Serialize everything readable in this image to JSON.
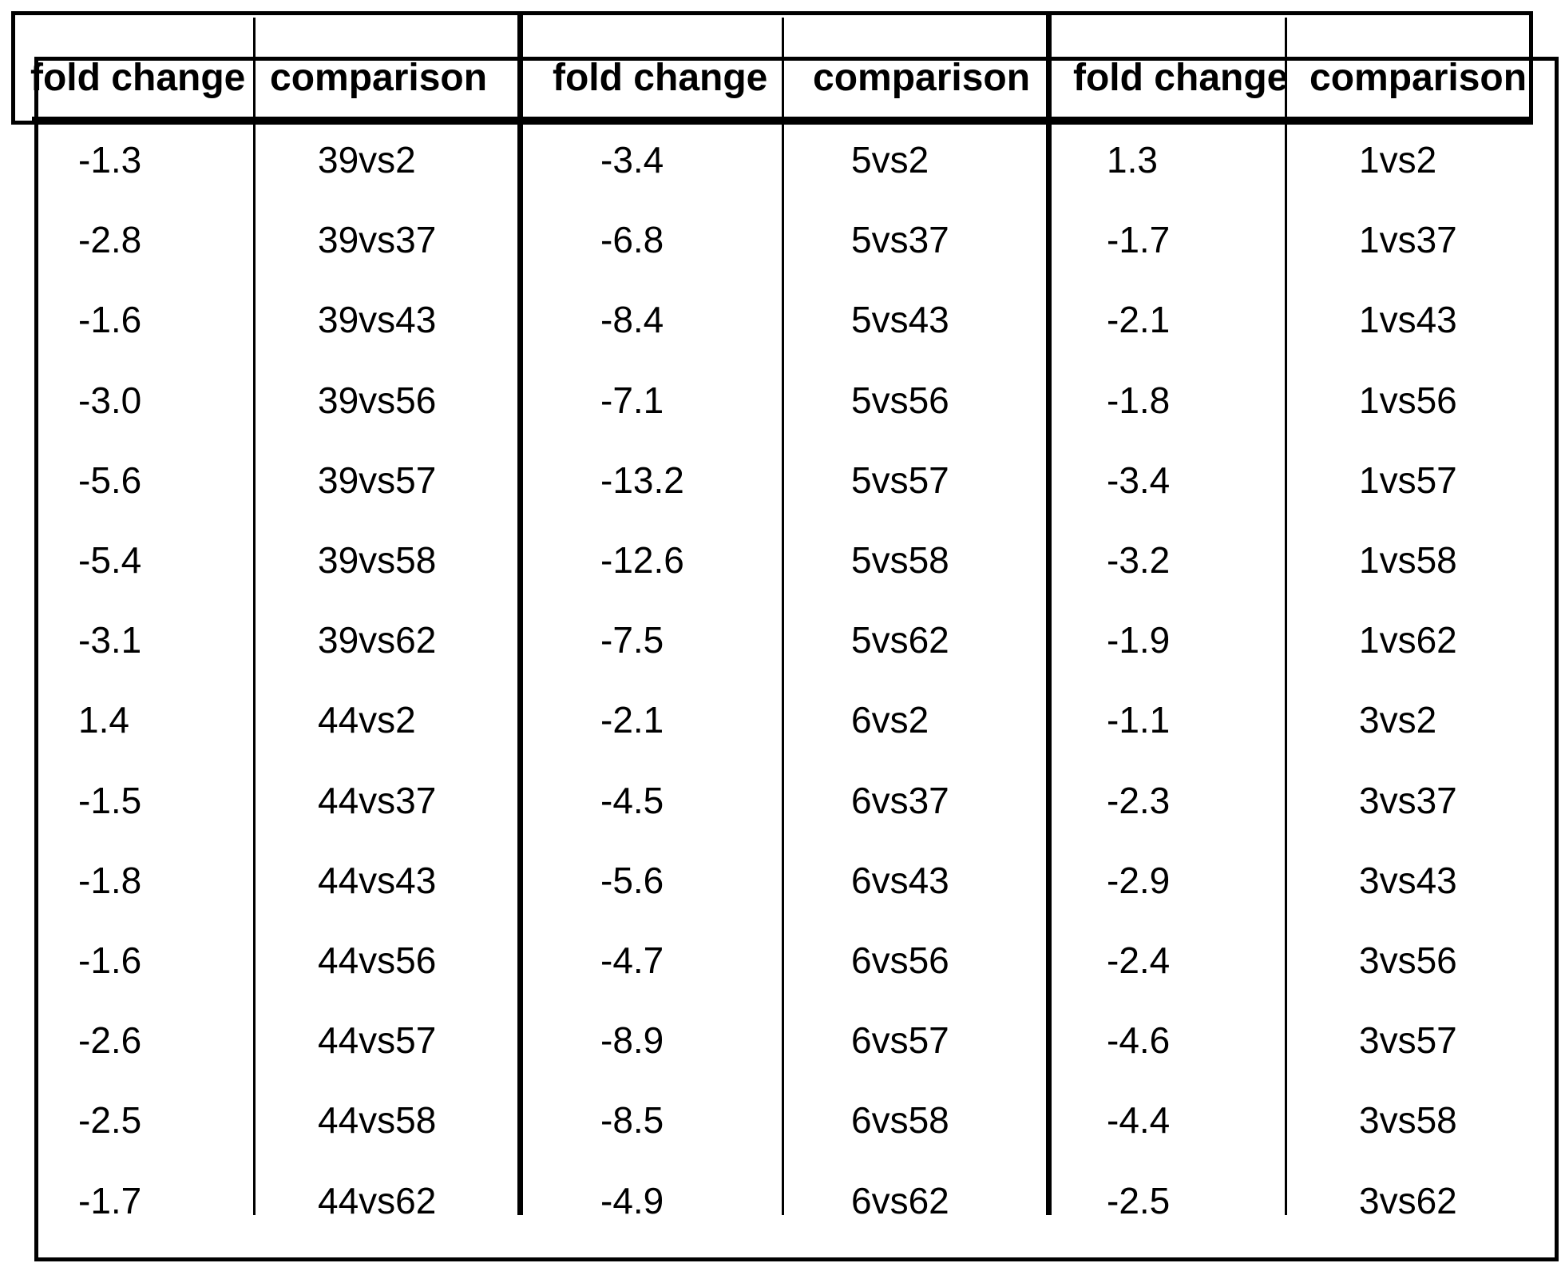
{
  "header": [
    "fold change",
    "comparison",
    "fold change",
    "comparison",
    "fold change",
    "comparison"
  ],
  "rows": [
    [
      "-1.3",
      "39vs2",
      "-3.4",
      "5vs2",
      "1.3",
      "1vs2"
    ],
    [
      "-2.8",
      "39vs37",
      "-6.8",
      "5vs37",
      "-1.7",
      "1vs37"
    ],
    [
      "-1.6",
      "39vs43",
      "-8.4",
      "5vs43",
      "-2.1",
      "1vs43"
    ],
    [
      "-3.0",
      "39vs56",
      "-7.1",
      "5vs56",
      "-1.8",
      "1vs56"
    ],
    [
      "-5.6",
      "39vs57",
      "-13.2",
      "5vs57",
      "-3.4",
      "1vs57"
    ],
    [
      "-5.4",
      "39vs58",
      "-12.6",
      "5vs58",
      "-3.2",
      "1vs58"
    ],
    [
      "-3.1",
      "39vs62",
      "-7.5",
      "5vs62",
      "-1.9",
      "1vs62"
    ],
    [
      "1.4",
      "44vs2",
      "-2.1",
      "6vs2",
      "-1.1",
      "3vs2"
    ],
    [
      "-1.5",
      "44vs37",
      "-4.5",
      "6vs37",
      "-2.3",
      "3vs37"
    ],
    [
      "-1.8",
      "44vs43",
      "-5.6",
      "6vs43",
      "-2.9",
      "3vs43"
    ],
    [
      "-1.6",
      "44vs56",
      "-4.7",
      "6vs56",
      "-2.4",
      "3vs56"
    ],
    [
      "-2.6",
      "44vs57",
      "-8.9",
      "6vs57",
      "-4.6",
      "3vs57"
    ],
    [
      "-2.5",
      "44vs58",
      "-8.5",
      "6vs58",
      "-4.4",
      "3vs58"
    ],
    [
      "-1.7",
      "44vs62",
      "-4.9",
      "6vs62",
      "-2.5",
      "3vs62"
    ]
  ]
}
